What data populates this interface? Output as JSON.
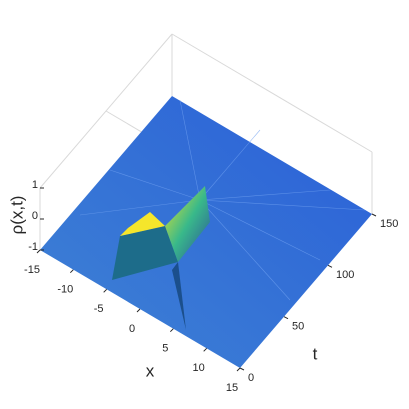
{
  "chart_data": {
    "type": "surface",
    "x_label": "x",
    "y_label": "t",
    "z_label": "ρ(x,t)",
    "xlim": [
      -15,
      15
    ],
    "xticks": [
      -15,
      -10,
      -5,
      0,
      5,
      10,
      15
    ],
    "ylim": [
      0,
      150
    ],
    "yticks": [
      0,
      50,
      100,
      150
    ],
    "zlim": [
      -1,
      1
    ],
    "zticks": [
      -1,
      0,
      1
    ]
  }
}
